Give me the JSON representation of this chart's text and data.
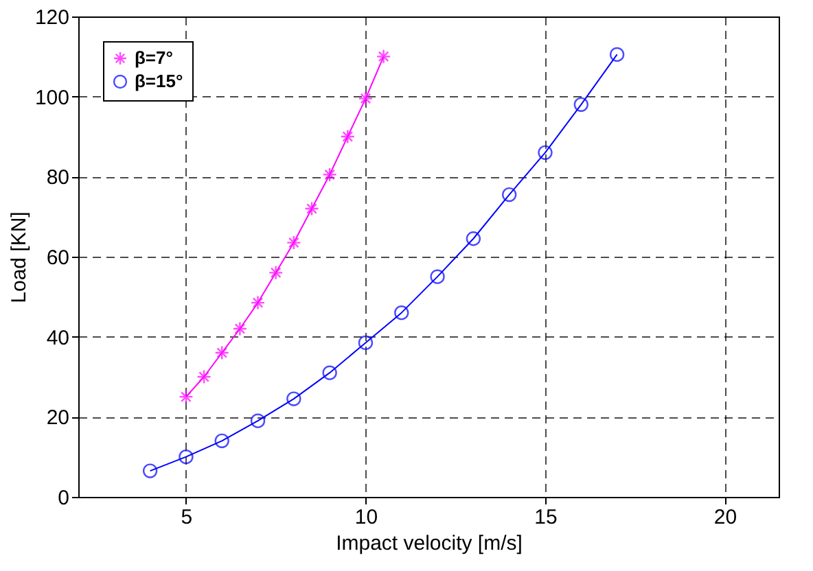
{
  "chart_data": {
    "type": "line",
    "xlabel": "Impact velocity [m/s]",
    "ylabel": "Load [KN]",
    "xlim": [
      2,
      21.5
    ],
    "xticks": [
      5,
      10,
      15,
      20
    ],
    "ylim": [
      0,
      120
    ],
    "yticks": [
      0,
      20,
      40,
      60,
      80,
      100,
      120
    ],
    "grid": true,
    "legend": "top left",
    "line_style": "solid",
    "series": [
      {
        "name": "β=7°",
        "color": "#ff00ff",
        "marker": "cross",
        "x": [
          5,
          5.5,
          6,
          6.5,
          7,
          7.5,
          8,
          8.5,
          9,
          9.5,
          10,
          10.5
        ],
        "values": [
          25,
          30,
          36,
          42,
          48.5,
          56,
          63.5,
          72,
          80.5,
          90,
          99.5,
          110
        ]
      },
      {
        "name": "β=15°",
        "color": "#0000ff",
        "marker": "circle",
        "x": [
          4,
          5,
          6,
          7,
          8,
          9,
          10,
          11,
          12,
          13,
          14,
          15,
          16,
          17
        ],
        "values": [
          6.5,
          10,
          14,
          19,
          24.5,
          31,
          38.5,
          46,
          55,
          64.5,
          75.5,
          86,
          98,
          110.5
        ]
      }
    ]
  }
}
